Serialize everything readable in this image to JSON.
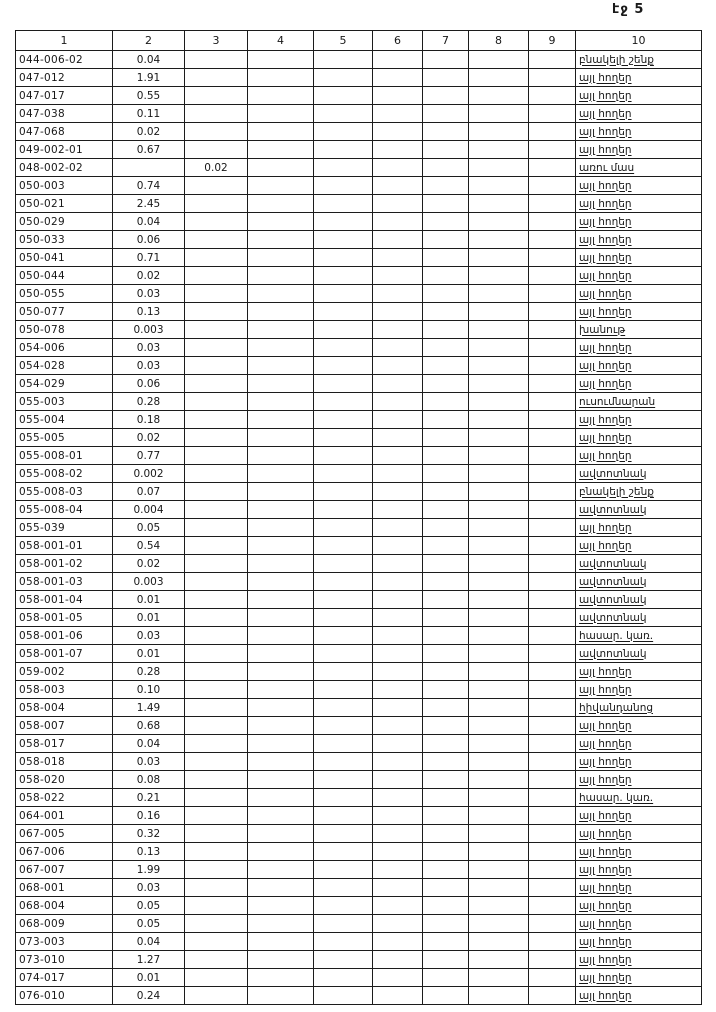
{
  "page": {
    "label": "էջ 5"
  },
  "table": {
    "headers": [
      "1",
      "2",
      "3",
      "4",
      "5",
      "6",
      "7",
      "8",
      "9",
      "10"
    ],
    "rows": [
      {
        "code": "044-006-02",
        "v2": "0.04",
        "v3": "",
        "use": "բնակելի շենք"
      },
      {
        "code": "047-012",
        "v2": "1.91",
        "v3": "",
        "use": "այլ հողեր"
      },
      {
        "code": "047-017",
        "v2": "0.55",
        "v3": "",
        "use": "այլ հողեր"
      },
      {
        "code": "047-038",
        "v2": "0.11",
        "v3": "",
        "use": "այլ հողեր"
      },
      {
        "code": "047-068",
        "v2": "0.02",
        "v3": "",
        "use": "այլ հողեր"
      },
      {
        "code": "049-002-01",
        "v2": "0.67",
        "v3": "",
        "use": "այլ հողեր"
      },
      {
        "code": "048-002-02",
        "v2": "",
        "v3": "0.02",
        "use": "առու մաս"
      },
      {
        "code": "050-003",
        "v2": "0.74",
        "v3": "",
        "use": "այլ հողեր"
      },
      {
        "code": "050-021",
        "v2": "2.45",
        "v3": "",
        "use": "այլ հողեր"
      },
      {
        "code": "050-029",
        "v2": "0.04",
        "v3": "",
        "use": "այլ հողեր"
      },
      {
        "code": "050-033",
        "v2": "0.06",
        "v3": "",
        "use": "այլ հողեր"
      },
      {
        "code": "050-041",
        "v2": "0.71",
        "v3": "",
        "use": "այլ հողեր"
      },
      {
        "code": "050-044",
        "v2": "0.02",
        "v3": "",
        "use": "այլ հողեր"
      },
      {
        "code": "050-055",
        "v2": "0.03",
        "v3": "",
        "use": "այլ հողեր"
      },
      {
        "code": "050-077",
        "v2": "0.13",
        "v3": "",
        "use": "այլ հողեր"
      },
      {
        "code": "050-078",
        "v2": "0.003",
        "v3": "",
        "use": "խանութ"
      },
      {
        "code": "054-006",
        "v2": "0.03",
        "v3": "",
        "use": "այլ հողեր"
      },
      {
        "code": "054-028",
        "v2": "0.03",
        "v3": "",
        "use": "այլ հողեր"
      },
      {
        "code": "054-029",
        "v2": "0.06",
        "v3": "",
        "use": "այլ հողեր"
      },
      {
        "code": "055-003",
        "v2": "0.28",
        "v3": "",
        "use": "ուսումնարան"
      },
      {
        "code": "055-004",
        "v2": "0.18",
        "v3": "",
        "use": "այլ հողեր"
      },
      {
        "code": "055-005",
        "v2": "0.02",
        "v3": "",
        "use": "այլ հողեր"
      },
      {
        "code": "055-008-01",
        "v2": "0.77",
        "v3": "",
        "use": "այլ հողեր"
      },
      {
        "code": "055-008-02",
        "v2": "0.002",
        "v3": "",
        "use": "ավտոտնակ"
      },
      {
        "code": "055-008-03",
        "v2": "0.07",
        "v3": "",
        "use": "բնակելի շենք"
      },
      {
        "code": "055-008-04",
        "v2": "0.004",
        "v3": "",
        "use": "ավտոտնակ"
      },
      {
        "code": "055-039",
        "v2": "0.05",
        "v3": "",
        "use": "այլ հողեր"
      },
      {
        "code": "058-001-01",
        "v2": "0.54",
        "v3": "",
        "use": "այլ հողեր"
      },
      {
        "code": "058-001-02",
        "v2": "0.02",
        "v3": "",
        "use": "ավտոտնակ"
      },
      {
        "code": "058-001-03",
        "v2": "0.003",
        "v3": "",
        "use": "ավտոտնակ"
      },
      {
        "code": "058-001-04",
        "v2": "0.01",
        "v3": "",
        "use": "ավտոտնակ"
      },
      {
        "code": "058-001-05",
        "v2": "0.01",
        "v3": "",
        "use": "ավտոտնակ"
      },
      {
        "code": "058-001-06",
        "v2": "0.03",
        "v3": "",
        "use": "հասար. կառ."
      },
      {
        "code": "058-001-07",
        "v2": "0.01",
        "v3": "",
        "use": "ավտոտնակ"
      },
      {
        "code": "059-002",
        "v2": "0.28",
        "v3": "",
        "use": "այլ հողեր"
      },
      {
        "code": "058-003",
        "v2": "0.10",
        "v3": "",
        "use": "այլ հողեր"
      },
      {
        "code": "058-004",
        "v2": "1.49",
        "v3": "",
        "use": "հիվանդանոց"
      },
      {
        "code": "058-007",
        "v2": "0.68",
        "v3": "",
        "use": "այլ հողեր"
      },
      {
        "code": "058-017",
        "v2": "0.04",
        "v3": "",
        "use": "այլ հողեր"
      },
      {
        "code": "058-018",
        "v2": "0.03",
        "v3": "",
        "use": "այլ հողեր"
      },
      {
        "code": "058-020",
        "v2": "0.08",
        "v3": "",
        "use": "այլ հողեր"
      },
      {
        "code": "058-022",
        "v2": "0.21",
        "v3": "",
        "use": "հասար. կառ."
      },
      {
        "code": "064-001",
        "v2": "0.16",
        "v3": "",
        "use": "այլ հողեր"
      },
      {
        "code": "067-005",
        "v2": "0.32",
        "v3": "",
        "use": "այլ հողեր"
      },
      {
        "code": "067-006",
        "v2": "0.13",
        "v3": "",
        "use": "այլ հողեր"
      },
      {
        "code": "067-007",
        "v2": "1.99",
        "v3": "",
        "use": "այլ հողեր"
      },
      {
        "code": "068-001",
        "v2": "0.03",
        "v3": "",
        "use": "այլ հողեր"
      },
      {
        "code": "068-004",
        "v2": "0.05",
        "v3": "",
        "use": "այլ հողեր"
      },
      {
        "code": "068-009",
        "v2": "0.05",
        "v3": "",
        "use": "այլ հողեր"
      },
      {
        "code": "073-003",
        "v2": "0.04",
        "v3": "",
        "use": "այլ հողեր"
      },
      {
        "code": "073-010",
        "v2": "1.27",
        "v3": "",
        "use": "այլ հողեր"
      },
      {
        "code": "074-017",
        "v2": "0.01",
        "v3": "",
        "use": "այլ հողեր"
      },
      {
        "code": "076-010",
        "v2": "0.24",
        "v3": "",
        "use": "այլ հողեր"
      }
    ]
  }
}
